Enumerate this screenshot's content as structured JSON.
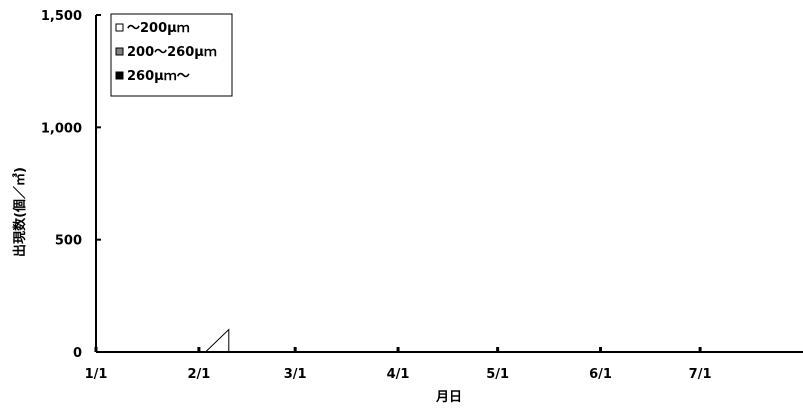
{
  "chart_data": {
    "type": "area",
    "xlabel": "月日",
    "ylabel": "出現数(個／㎥)",
    "x_tick_labels": [
      "1/1",
      "2/1",
      "3/1",
      "4/1",
      "5/1",
      "6/1",
      "7/1"
    ],
    "y_tick_labels": [
      "0",
      "500",
      "1,000",
      "1,500"
    ],
    "ylim": [
      0,
      1500
    ],
    "x_start": "2000-01-01",
    "x_end": "2000-08-01",
    "grid": false,
    "legend_position": "top-left",
    "series": [
      {
        "name": "～200μｍ",
        "color": "#ffffff",
        "points": [
          [
            "2000-02-03",
            0
          ],
          [
            "2000-02-10",
            100
          ],
          [
            "2000-02-10",
            0
          ]
        ]
      },
      {
        "name": "200～260μｍ",
        "color": "#808080",
        "points": []
      },
      {
        "name": "260μｍ～",
        "color": "#000000",
        "points": []
      }
    ]
  }
}
